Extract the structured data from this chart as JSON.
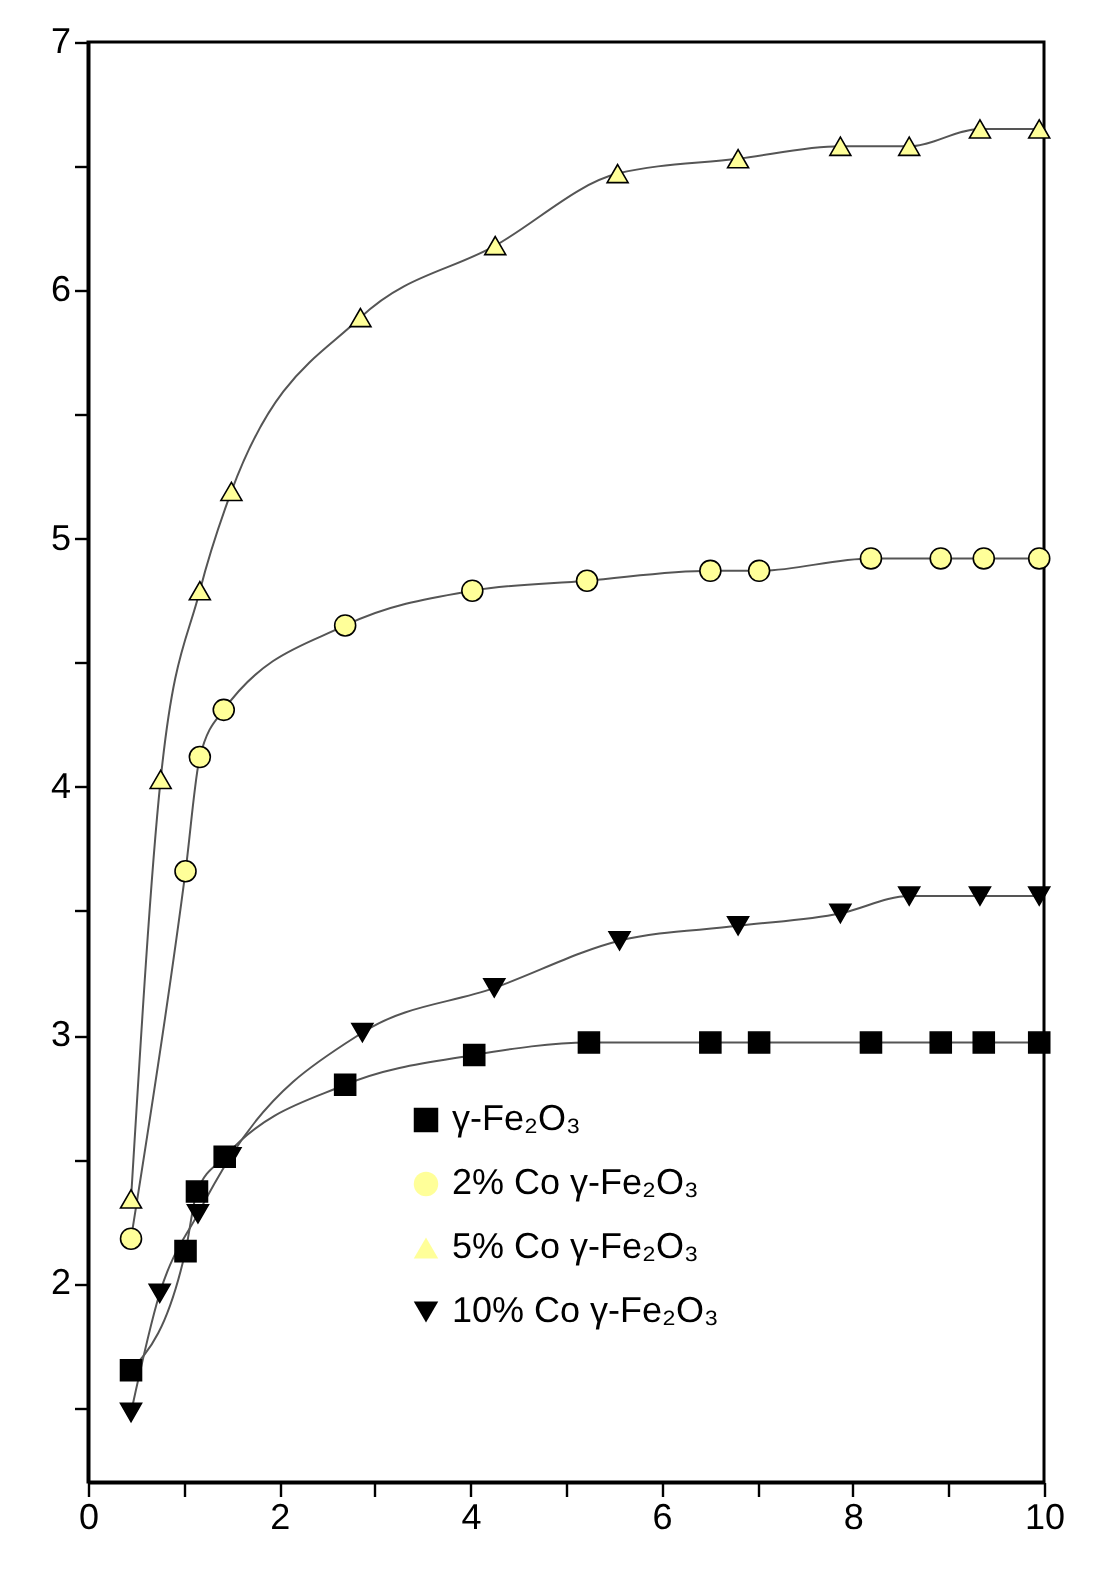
{
  "chart_data": {
    "type": "line",
    "xlim": [
      0,
      10
    ],
    "ylim": [
      1.2,
      7
    ],
    "xticks": [
      0,
      {
        "value": 1,
        "label": null
      },
      2,
      {
        "value": 3,
        "label": null
      },
      4,
      {
        "value": 5,
        "label": null
      },
      6,
      {
        "value": 7,
        "label": null
      },
      8,
      {
        "value": 9,
        "label": null
      },
      10
    ],
    "yticks": [
      {
        "value": 1.5,
        "label": null
      },
      2,
      {
        "value": 2.5,
        "label": null
      },
      3,
      {
        "value": 3.5,
        "label": null
      },
      4,
      {
        "value": 4.5,
        "label": null
      },
      5,
      {
        "value": 5.5,
        "label": null
      },
      6,
      {
        "value": 6.5,
        "label": null
      },
      7
    ],
    "grid": false,
    "legend": "bottom right",
    "line_style": "solid",
    "series": [
      {
        "name": "γ-Fe₂O₃",
        "color": "#000000",
        "marker": "square",
        "x": [
          0.45,
          1.02,
          1.14,
          1.43,
          2.69,
          4.04,
          5.24,
          6.51,
          7.02,
          8.19,
          8.92,
          9.37,
          9.95
        ],
        "values": [
          1.65,
          2.13,
          2.37,
          2.51,
          2.8,
          2.92,
          2.97,
          2.97,
          2.97,
          2.97,
          2.97,
          2.97,
          2.97
        ]
      },
      {
        "name": "2% Co γ-Fe₂O₃",
        "color": "#ffff99",
        "marker": "circle",
        "x": [
          0.45,
          1.02,
          1.17,
          1.42,
          2.69,
          4.02,
          5.22,
          6.51,
          7.02,
          8.19,
          8.92,
          9.37,
          9.95
        ],
        "values": [
          2.18,
          3.66,
          4.12,
          4.31,
          4.65,
          4.79,
          4.83,
          4.87,
          4.87,
          4.92,
          4.92,
          4.92,
          4.92
        ]
      },
      {
        "name": "5% Co γ-Fe₂O₃",
        "color": "#ffff99",
        "marker": "triangle",
        "x": [
          0.45,
          0.76,
          1.17,
          1.5,
          2.85,
          4.26,
          5.54,
          6.8,
          7.87,
          8.59,
          9.33,
          9.95
        ],
        "values": [
          2.34,
          4.03,
          4.79,
          5.19,
          5.89,
          6.18,
          6.47,
          6.53,
          6.58,
          6.58,
          6.65,
          6.65
        ]
      },
      {
        "name": "10% Co γ-Fe₂O₃",
        "color": "#000000",
        "marker": "triangle-down",
        "x": [
          0.45,
          0.75,
          1.15,
          1.49,
          2.87,
          4.25,
          5.56,
          6.8,
          7.87,
          8.59,
          9.33,
          9.95
        ],
        "values": [
          1.48,
          1.96,
          2.28,
          2.51,
          3.01,
          3.19,
          3.38,
          3.44,
          3.49,
          3.56,
          3.56,
          3.56
        ]
      }
    ]
  }
}
